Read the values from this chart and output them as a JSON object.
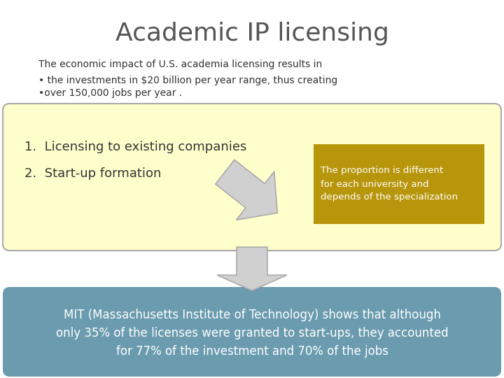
{
  "title": "Academic IP licensing",
  "subtitle": "The economic impact of U.S. academia licensing results in",
  "bullet1": "• the investments in $20 billion per year range, thus creating",
  "bullet2": "•over 150,000 jobs per year .",
  "box1_item1": "1.  Licensing to existing companies",
  "box1_item2": "2.  Start-up formation",
  "callout_text": "The proportion is different\nfor each university and\ndepends of the specialization",
  "mit_text": "MIT (Massachusetts Institute of Technology) shows that although\nonly 35% of the licenses were granted to start-ups, they accounted\nfor 77% of the investment and 70% of the jobs",
  "bg_color": "#ffffff",
  "box1_bg": "#ffffcc",
  "box1_border": "#aaaaaa",
  "callout_bg": "#b8960c",
  "callout_text_color": "#ffffff",
  "mit_bg": "#6a9baf",
  "mit_text_color": "#ffffff",
  "title_color": "#555555",
  "body_text_color": "#333333",
  "arrow_fill": "#d0d0d0",
  "arrow_edge": "#aaaaaa",
  "title_fontsize": 26,
  "subtitle_fontsize": 10,
  "bullet_fontsize": 10,
  "list_fontsize": 13,
  "callout_fontsize": 9.5,
  "mit_fontsize": 12
}
